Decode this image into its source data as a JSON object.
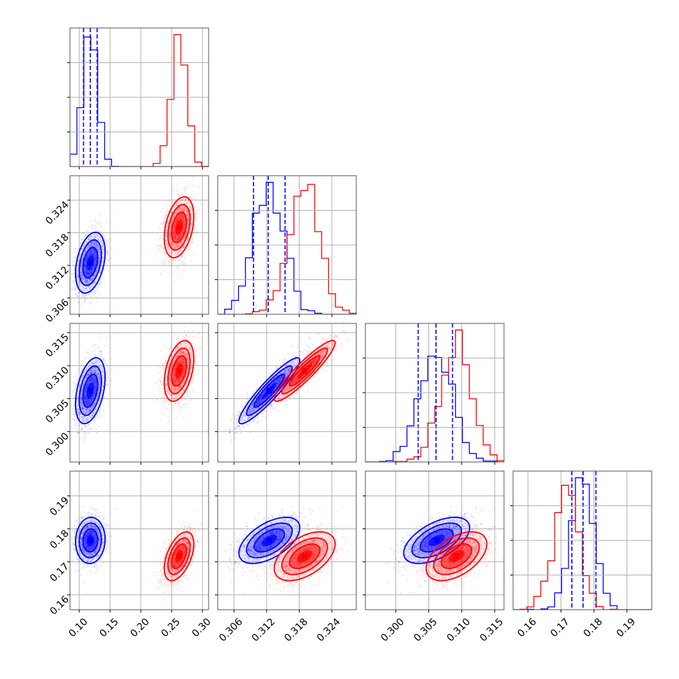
{
  "chart_data": {
    "type": "corner",
    "title": "",
    "colors": {
      "series_a": "#0000ff",
      "series_b": "#ff0000",
      "grid": "#b0b0b0"
    },
    "grid": true,
    "series": [
      {
        "name": "",
        "color": "#0000ff",
        "mean": [
          0.118,
          0.3125,
          0.3062,
          0.1765
        ],
        "sd": [
          0.012,
          0.0028,
          0.0025,
          0.0035
        ],
        "corr": [
          [
            1,
            0.35,
            0.4,
            0.05
          ],
          [
            0.35,
            1,
            0.92,
            0.55
          ],
          [
            0.4,
            0.92,
            1,
            0.55
          ],
          [
            0.05,
            0.55,
            0.55,
            1
          ]
        ],
        "quantiles": [
          [
            0.107,
            0.118,
            0.129
          ],
          [
            0.3096,
            0.3123,
            0.3154
          ],
          [
            0.3034,
            0.3061,
            0.3086
          ],
          [
            0.1733,
            0.1767,
            0.1806
          ]
        ]
      },
      {
        "name": "",
        "color": "#ff0000",
        "mean": [
          0.262,
          0.319,
          0.3092,
          0.1717
        ],
        "sd": [
          0.012,
          0.0028,
          0.0023,
          0.0037
        ],
        "corr": [
          [
            1,
            0.35,
            0.4,
            0.5
          ],
          [
            0.35,
            1,
            0.92,
            0.5
          ],
          [
            0.4,
            0.92,
            1,
            0.5
          ],
          [
            0.5,
            0.5,
            0.5,
            1
          ]
        ]
      }
    ],
    "params": [
      {
        "range": [
          0.085,
          0.31
        ],
        "ticks": [
          0.1,
          0.15,
          0.2,
          0.25,
          0.3
        ],
        "tick_labels": [
          "0.10",
          "0.15",
          "0.20",
          "0.25",
          "0.30"
        ]
      },
      {
        "range": [
          0.303,
          0.3285
        ],
        "ticks": [
          0.306,
          0.312,
          0.318,
          0.324
        ],
        "tick_labels": [
          "0.306",
          "0.312",
          "0.318",
          "0.324"
        ]
      },
      {
        "range": [
          0.2954,
          0.3164
        ],
        "ticks": [
          0.3,
          0.305,
          0.31,
          0.315
        ],
        "tick_labels": [
          "0.300",
          "0.305",
          "0.310",
          "0.315"
        ]
      },
      {
        "range": [
          0.1555,
          0.1975
        ],
        "ticks": [
          0.16,
          0.17,
          0.18,
          0.19
        ],
        "tick_labels": [
          "0.16",
          "0.17",
          "0.18",
          "0.19"
        ]
      }
    ]
  }
}
